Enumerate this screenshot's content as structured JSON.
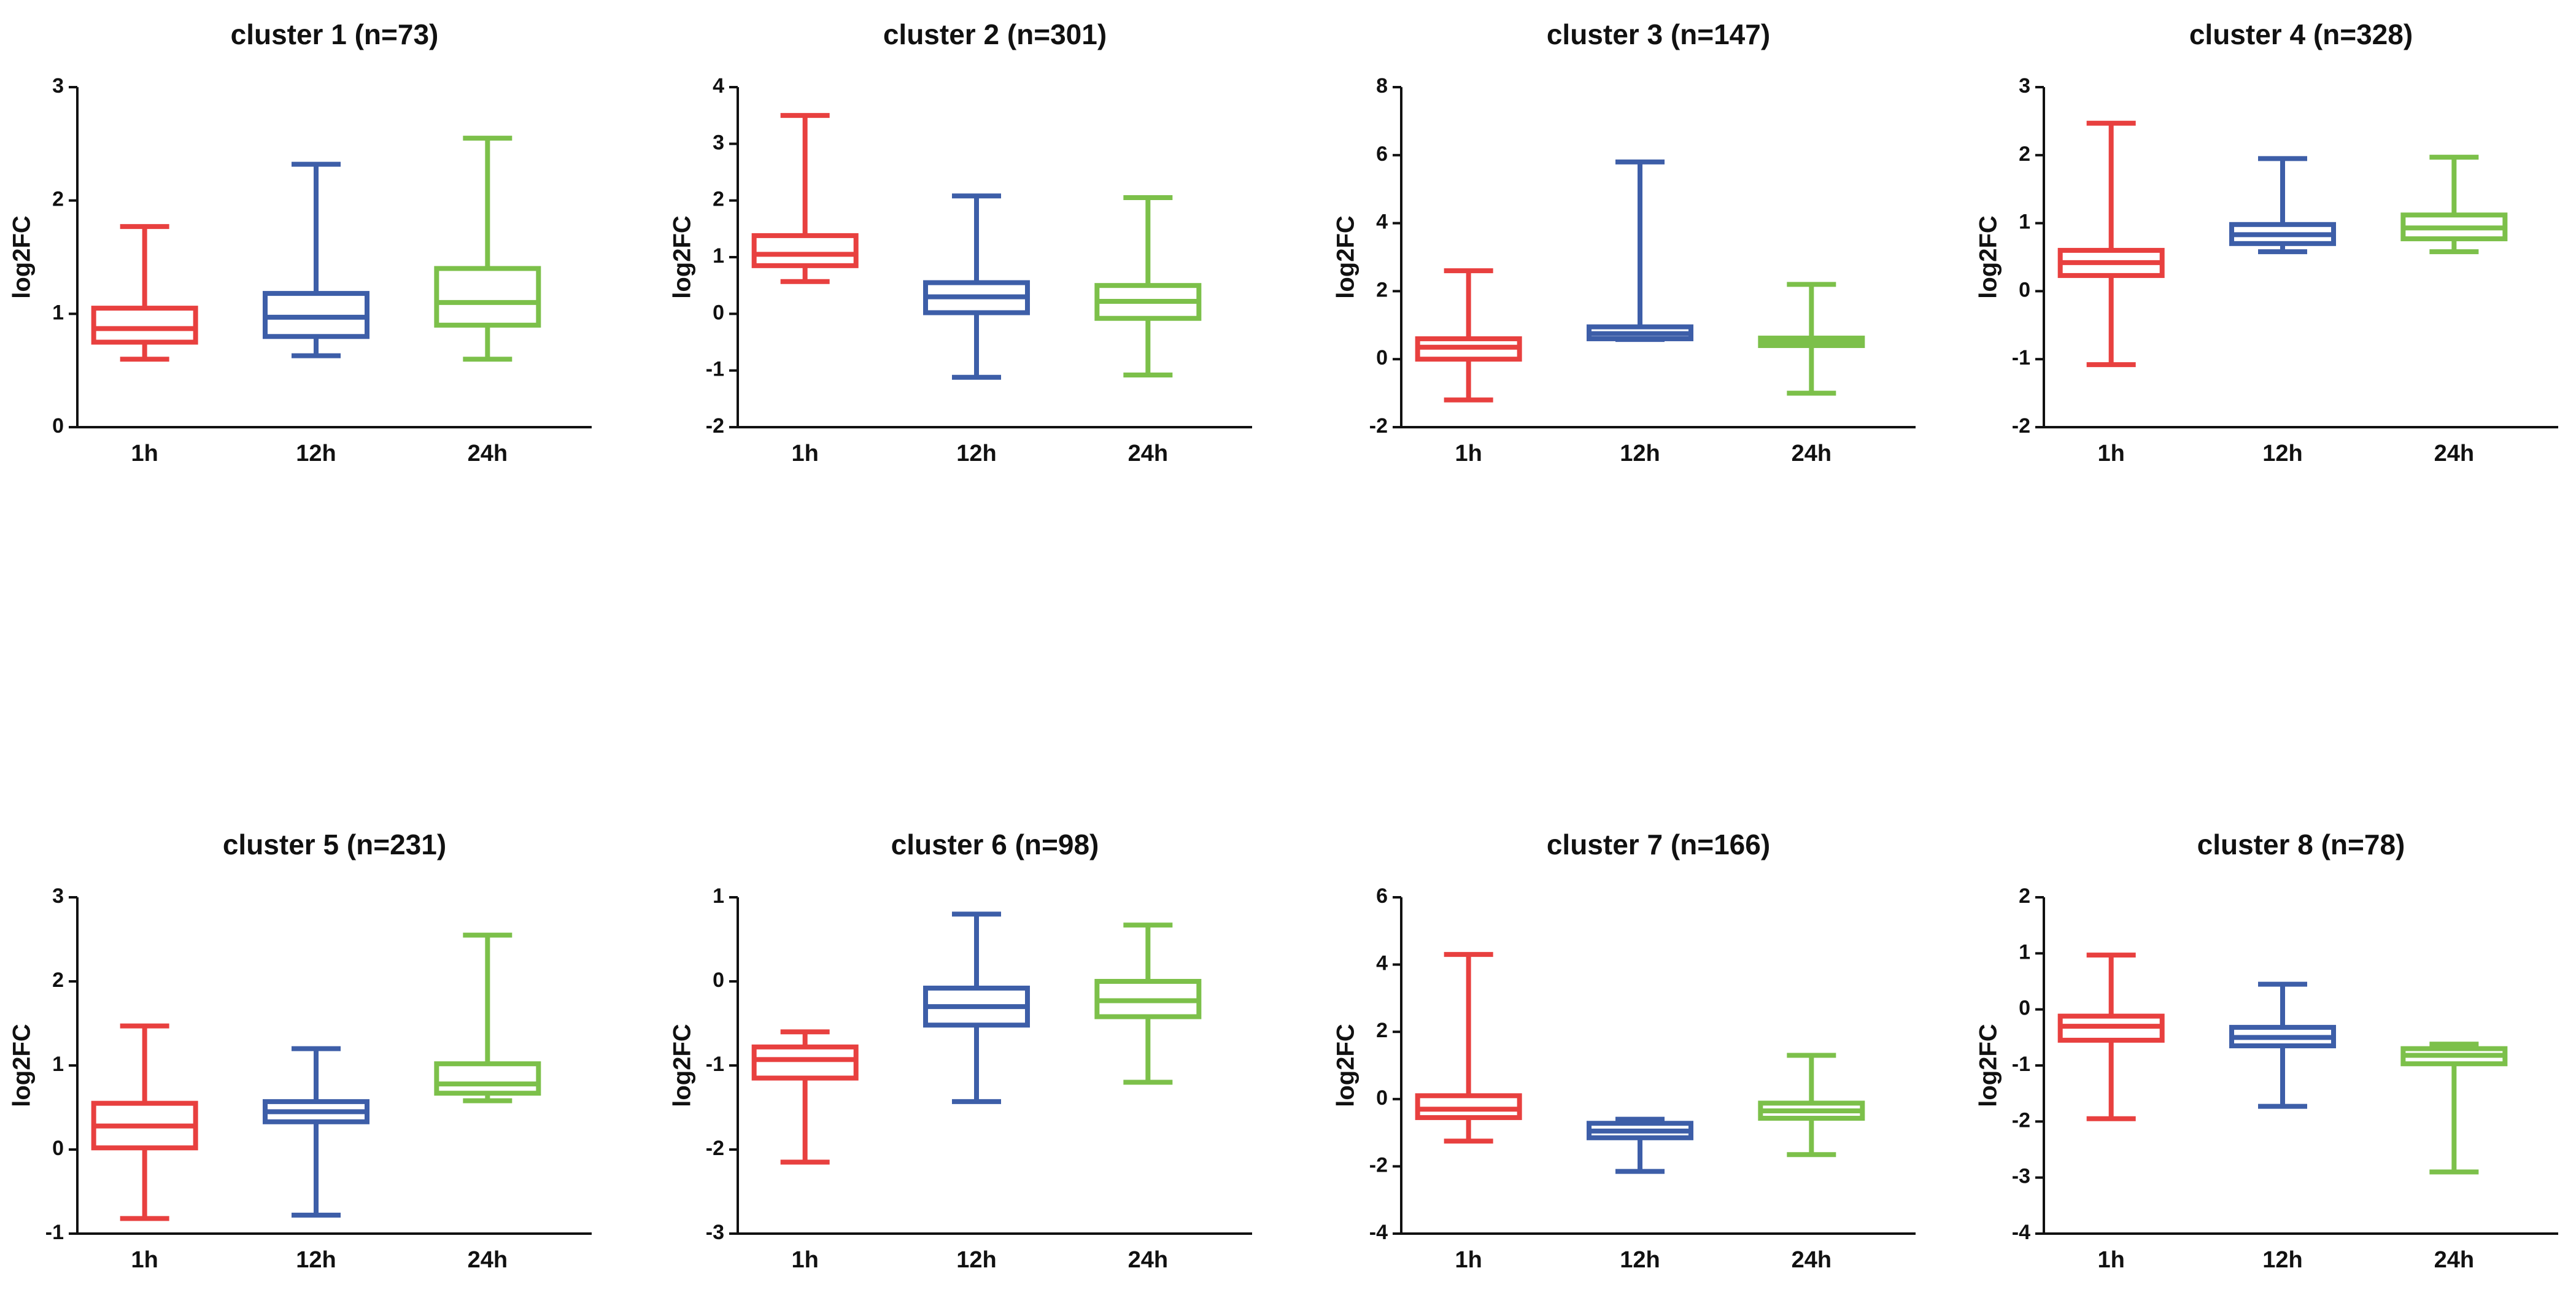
{
  "chart_data": [
    {
      "type": "box",
      "title": "cluster 1 (n=73)",
      "ylabel": "log2FC",
      "categories": [
        "1h",
        "12h",
        "24h"
      ],
      "colors": [
        "#e8403f",
        "#3d5ea8",
        "#7cc04a"
      ],
      "ylim": [
        0,
        3
      ],
      "yticks": [
        0,
        1,
        2,
        3
      ],
      "boxes": [
        {
          "min": 0.6,
          "q1": 0.75,
          "median": 0.87,
          "q3": 1.05,
          "max": 1.77
        },
        {
          "min": 0.63,
          "q1": 0.8,
          "median": 0.97,
          "q3": 1.18,
          "max": 2.32
        },
        {
          "min": 0.6,
          "q1": 0.9,
          "median": 1.1,
          "q3": 1.4,
          "max": 2.55
        }
      ]
    },
    {
      "type": "box",
      "title": "cluster 2 (n=301)",
      "ylabel": "log2FC",
      "categories": [
        "1h",
        "12h",
        "24h"
      ],
      "colors": [
        "#e8403f",
        "#3d5ea8",
        "#7cc04a"
      ],
      "ylim": [
        -2,
        4
      ],
      "yticks": [
        -2,
        -1,
        0,
        1,
        2,
        3,
        4
      ],
      "boxes": [
        {
          "min": 0.57,
          "q1": 0.85,
          "median": 1.05,
          "q3": 1.38,
          "max": 3.5
        },
        {
          "min": -1.12,
          "q1": 0.02,
          "median": 0.3,
          "q3": 0.55,
          "max": 2.08
        },
        {
          "min": -1.08,
          "q1": -0.08,
          "median": 0.22,
          "q3": 0.5,
          "max": 2.05
        }
      ]
    },
    {
      "type": "box",
      "title": "cluster 3 (n=147)",
      "ylabel": "log2FC",
      "categories": [
        "1h",
        "12h",
        "24h"
      ],
      "colors": [
        "#e8403f",
        "#3d5ea8",
        "#7cc04a"
      ],
      "ylim": [
        -2,
        8
      ],
      "yticks": [
        -2,
        0,
        2,
        4,
        6,
        8
      ],
      "boxes": [
        {
          "min": -1.2,
          "q1": 0.0,
          "median": 0.35,
          "q3": 0.6,
          "max": 2.6
        },
        {
          "min": 0.58,
          "q1": 0.6,
          "median": 0.75,
          "q3": 0.95,
          "max": 5.8
        },
        {
          "min": -1.0,
          "q1": 0.4,
          "median": 0.52,
          "q3": 0.62,
          "max": 2.2
        }
      ]
    },
    {
      "type": "box",
      "title": "cluster 4 (n=328)",
      "ylabel": "log2FC",
      "categories": [
        "1h",
        "12h",
        "24h"
      ],
      "colors": [
        "#e8403f",
        "#3d5ea8",
        "#7cc04a"
      ],
      "ylim": [
        -2,
        3
      ],
      "yticks": [
        -2,
        -1,
        0,
        1,
        2,
        3
      ],
      "boxes": [
        {
          "min": -1.08,
          "q1": 0.23,
          "median": 0.42,
          "q3": 0.6,
          "max": 2.47
        },
        {
          "min": 0.58,
          "q1": 0.7,
          "median": 0.83,
          "q3": 0.98,
          "max": 1.95
        },
        {
          "min": 0.58,
          "q1": 0.77,
          "median": 0.93,
          "q3": 1.12,
          "max": 1.97
        }
      ]
    },
    {
      "type": "box",
      "title": "cluster 5 (n=231)",
      "ylabel": "log2FC",
      "categories": [
        "1h",
        "12h",
        "24h"
      ],
      "colors": [
        "#e8403f",
        "#3d5ea8",
        "#7cc04a"
      ],
      "ylim": [
        -1,
        3
      ],
      "yticks": [
        -1,
        0,
        1,
        2,
        3
      ],
      "boxes": [
        {
          "min": -0.82,
          "q1": 0.02,
          "median": 0.28,
          "q3": 0.55,
          "max": 1.47
        },
        {
          "min": -0.78,
          "q1": 0.33,
          "median": 0.45,
          "q3": 0.57,
          "max": 1.2
        },
        {
          "min": 0.58,
          "q1": 0.67,
          "median": 0.78,
          "q3": 1.02,
          "max": 2.55
        }
      ]
    },
    {
      "type": "box",
      "title": "cluster 6 (n=98)",
      "ylabel": "log2FC",
      "categories": [
        "1h",
        "12h",
        "24h"
      ],
      "colors": [
        "#e8403f",
        "#3d5ea8",
        "#7cc04a"
      ],
      "ylim": [
        -3,
        1
      ],
      "yticks": [
        -3,
        -2,
        -1,
        0,
        1
      ],
      "boxes": [
        {
          "min": -2.15,
          "q1": -1.15,
          "median": -0.93,
          "q3": -0.78,
          "max": -0.6
        },
        {
          "min": -1.43,
          "q1": -0.52,
          "median": -0.3,
          "q3": -0.08,
          "max": 0.8
        },
        {
          "min": -1.2,
          "q1": -0.42,
          "median": -0.23,
          "q3": 0.0,
          "max": 0.67
        }
      ]
    },
    {
      "type": "box",
      "title": "cluster 7 (n=166)",
      "ylabel": "log2FC",
      "categories": [
        "1h",
        "12h",
        "24h"
      ],
      "colors": [
        "#e8403f",
        "#3d5ea8",
        "#7cc04a"
      ],
      "ylim": [
        -4,
        6
      ],
      "yticks": [
        -4,
        -2,
        0,
        2,
        4,
        6
      ],
      "boxes": [
        {
          "min": -1.25,
          "q1": -0.55,
          "median": -0.3,
          "q3": 0.1,
          "max": 4.3
        },
        {
          "min": -2.15,
          "q1": -1.15,
          "median": -0.95,
          "q3": -0.72,
          "max": -0.6
        },
        {
          "min": -1.65,
          "q1": -0.57,
          "median": -0.35,
          "q3": -0.12,
          "max": 1.3
        }
      ]
    },
    {
      "type": "box",
      "title": "cluster 8 (n=78)",
      "ylabel": "log2FC",
      "categories": [
        "1h",
        "12h",
        "24h"
      ],
      "colors": [
        "#e8403f",
        "#3d5ea8",
        "#7cc04a"
      ],
      "ylim": [
        -4,
        2
      ],
      "yticks": [
        -4,
        -3,
        -2,
        -1,
        0,
        1,
        2
      ],
      "boxes": [
        {
          "min": -1.95,
          "q1": -0.55,
          "median": -0.3,
          "q3": -0.12,
          "max": 0.97
        },
        {
          "min": -1.73,
          "q1": -0.65,
          "median": -0.5,
          "q3": -0.32,
          "max": 0.45
        },
        {
          "min": -2.9,
          "q1": -0.97,
          "median": -0.82,
          "q3": -0.7,
          "max": -0.62
        }
      ]
    }
  ]
}
